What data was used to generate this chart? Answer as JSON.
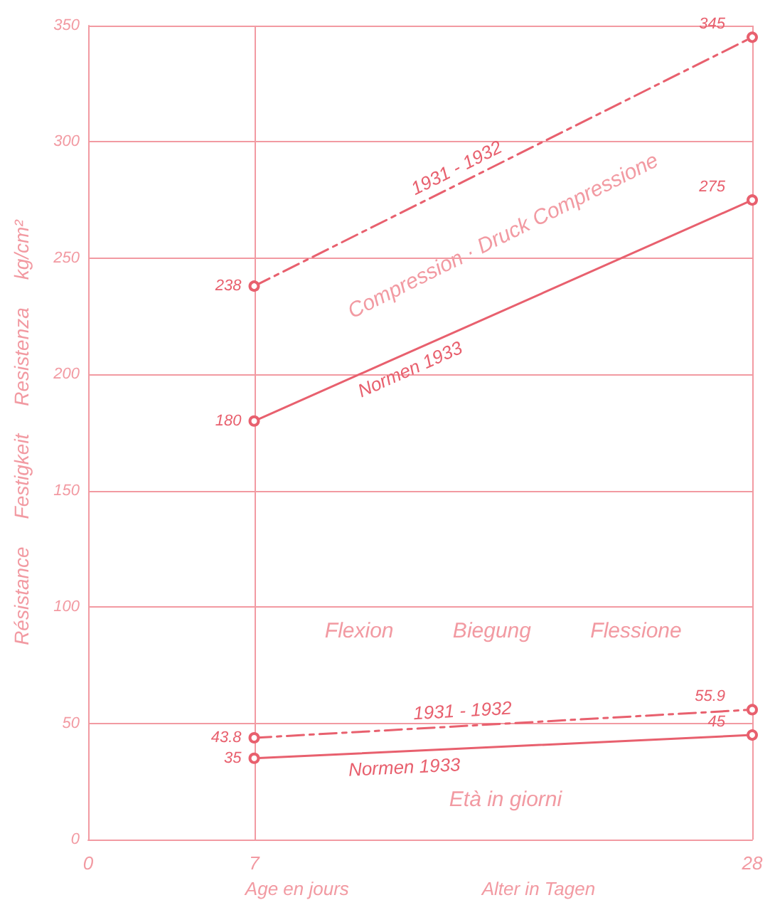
{
  "chart_data": {
    "type": "line",
    "ylabel": "Résistance     Festigkeit     Resistenza     kg/cm²",
    "xlabel": "Age en jours                          Alter in Tagen",
    "x": [
      7,
      28
    ],
    "series": [
      {
        "name": "1931 - 1932",
        "color": "#e8606e",
        "values": [
          238,
          345
        ],
        "line_style": "dashed"
      },
      {
        "name": "Normen 1933",
        "color": "#e8606e",
        "values": [
          180,
          275
        ],
        "line_style": "solid"
      },
      {
        "name": "1931 - 1932",
        "color": "#e8606e",
        "values": [
          43.8,
          55.9
        ],
        "line_style": "dashed"
      },
      {
        "name": "Normen 1933",
        "color": "#e8606e",
        "values": [
          35,
          45
        ],
        "line_style": "solid"
      }
    ],
    "xlim": [
      0,
      28
    ],
    "xticks": [
      0,
      7,
      28
    ],
    "ylim": [
      0,
      350
    ],
    "yticks": [
      0,
      50,
      100,
      150,
      200,
      250,
      300,
      350
    ],
    "grid": true,
    "legend": false,
    "marker": "circle",
    "data_labels": true,
    "annotations": [
      "Compression · Druck Compressione",
      "Flexion          Biegung          Flessione",
      "Età in giorni"
    ]
  }
}
